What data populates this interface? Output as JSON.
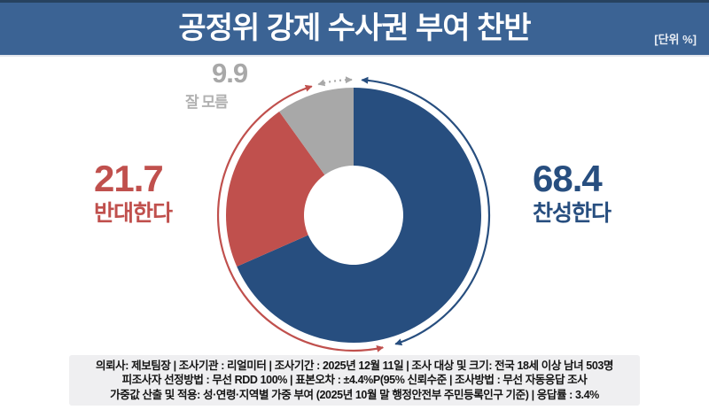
{
  "header": {
    "title": "공정위 강제 수사권 부여 찬반",
    "unit_label": "[단위 %]"
  },
  "chart_data": {
    "type": "pie",
    "donut": true,
    "title": "공정위 강제 수사권 부여 찬반",
    "unit": "%",
    "start_angle_deg": 0,
    "direction": "clockwise",
    "slices": [
      {
        "label": "찬성한다",
        "value": 68.4,
        "color": "#274e7f"
      },
      {
        "label": "반대한다",
        "value": 21.7,
        "color": "#c0504d"
      },
      {
        "label": "잘 모름",
        "value": 9.9,
        "color": "#a8a8a8"
      }
    ]
  },
  "footnote": {
    "lines": [
      "의뢰사: 제보팀장 | 조사기관 : 리얼미터 | 조사기간 : 2025년 12월 11일 | 조사 대상 및 크기: 전국 18세 이상 남녀 503명",
      "피조사자 선정방법 : 무선 RDD 100% | 표본오차 : ±4.4%P(95% 신뢰수준 | 조사방법 : 무선 자동응답 조사",
      "가중값 산출 및 적용: 성·연령·지역별 가중 부여 (2025년 10월 말 행정안전부 주민등록인구 기준) | 응답률 : 3.4%"
    ]
  }
}
